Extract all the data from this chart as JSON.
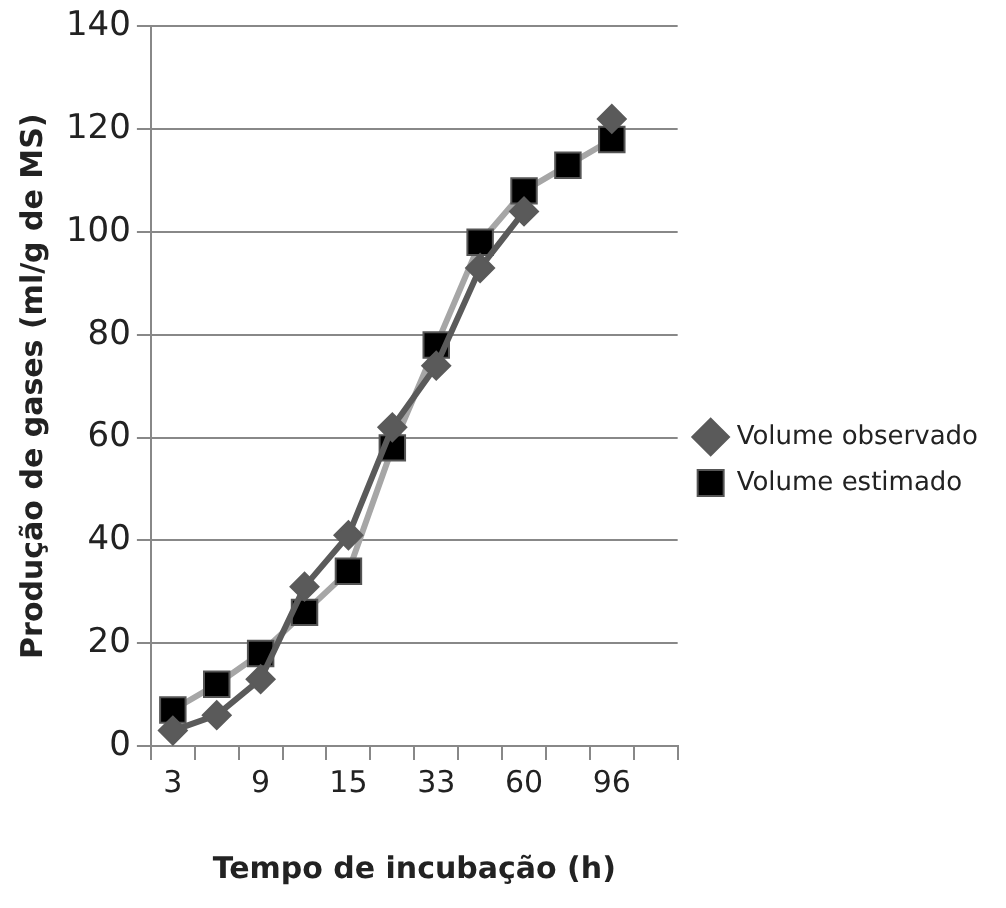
{
  "chart_data": {
    "type": "line",
    "xlabel": "Tempo de incubação (h)",
    "ylabel": "Produção de gases (ml/g de MS)",
    "categories": [
      "3",
      null,
      "9",
      null,
      "15",
      null,
      "33",
      null,
      "60",
      null,
      "96",
      null
    ],
    "series": [
      {
        "name": "Volume observado",
        "color": "#5a5a5a",
        "marker": "diamond",
        "values": [
          3,
          6,
          13,
          31,
          41,
          62,
          74,
          93,
          104,
          null,
          122,
          null
        ]
      },
      {
        "name": "Volume estimado",
        "color": "#a6a6a6",
        "marker": "square",
        "values": [
          7,
          12,
          18,
          26,
          34,
          58,
          78,
          98,
          108,
          113,
          118,
          null
        ]
      }
    ],
    "ylim": [
      0,
      140
    ],
    "yticks": [
      0,
      20,
      40,
      60,
      80,
      100,
      120,
      140
    ],
    "grid": "y",
    "legend": "right"
  }
}
